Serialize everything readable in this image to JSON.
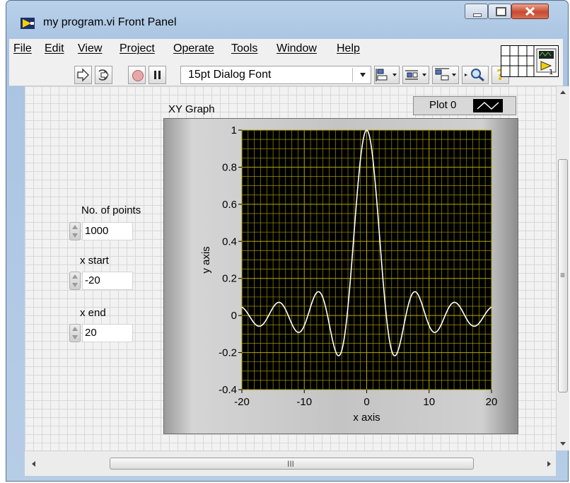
{
  "window": {
    "title": "my program.vi Front Panel"
  },
  "menu": [
    "File",
    "Edit",
    "View",
    "Project",
    "Operate",
    "Tools",
    "Window",
    "Help"
  ],
  "toolbar": {
    "font": "15pt Dialog Font"
  },
  "controls": [
    {
      "label": "No. of points",
      "value": "1000"
    },
    {
      "label": "x start",
      "value": "-20"
    },
    {
      "label": "x end",
      "value": "20"
    }
  ],
  "graph": {
    "label": "XY Graph",
    "legend": "Plot 0",
    "colors": {
      "plot_bg": "#000000",
      "grid": "#b5a800",
      "trace": "#ffffff"
    }
  },
  "scrollbar": {
    "h_grip": "III",
    "v_grip": "≡"
  },
  "chart_data": {
    "type": "line",
    "title": "XY Graph",
    "xlabel": "x axis",
    "ylabel": "y axis",
    "xlim": [
      -20,
      20
    ],
    "ylim": [
      -0.4,
      1
    ],
    "x_ticks": [
      -20,
      -10,
      0,
      10,
      20
    ],
    "y_ticks": [
      -0.4,
      -0.2,
      0,
      0.2,
      0.4,
      0.6,
      0.8,
      1
    ],
    "grid": true,
    "legend": "top-right",
    "series": [
      {
        "name": "Plot 0",
        "function": "sin(x)/x",
        "points": 1000,
        "x_start": -20,
        "x_end": 20
      }
    ]
  }
}
